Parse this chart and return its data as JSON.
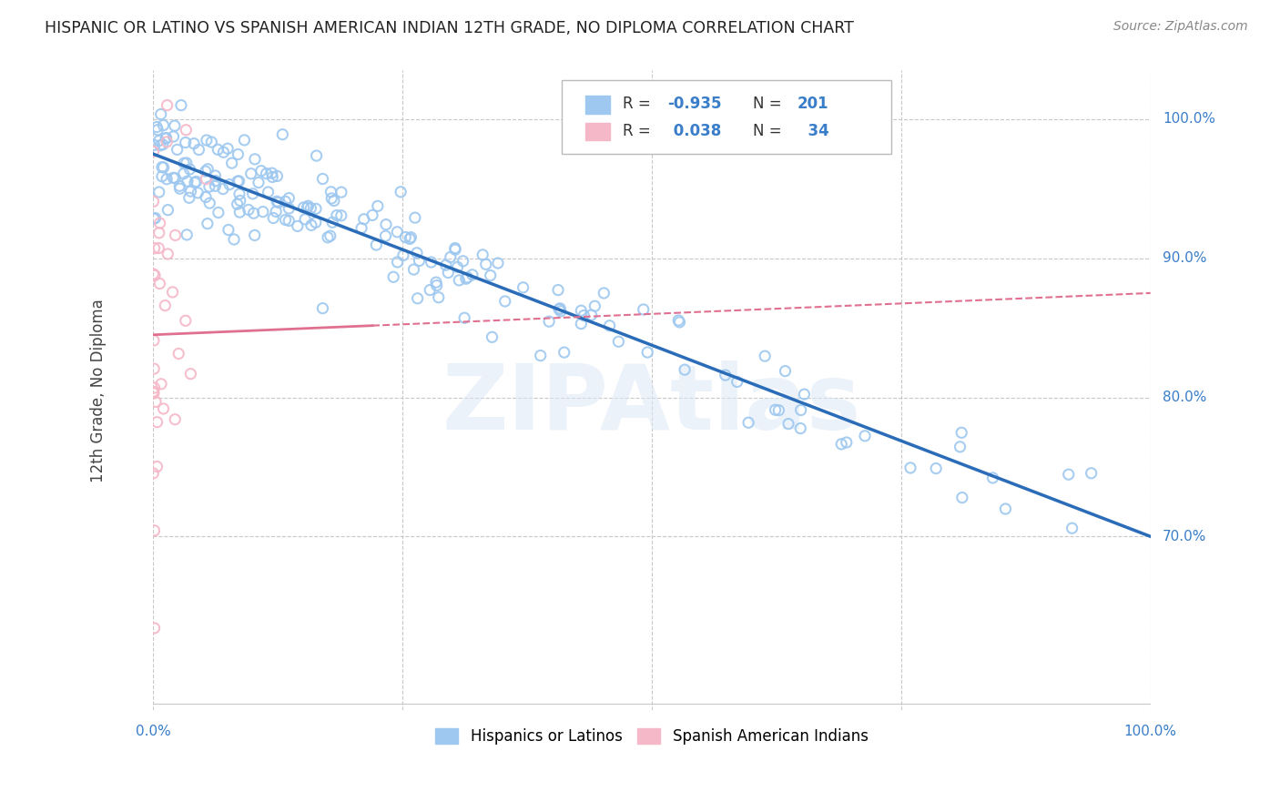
{
  "title": "HISPANIC OR LATINO VS SPANISH AMERICAN INDIAN 12TH GRADE, NO DIPLOMA CORRELATION CHART",
  "source": "Source: ZipAtlas.com",
  "ylabel": "12th Grade, No Diploma",
  "watermark": "ZIPAtlas",
  "blue_R": -0.935,
  "blue_N": 201,
  "pink_R": 0.038,
  "pink_N": 34,
  "blue_color": "#9ec8f0",
  "pink_color": "#f5b8c8",
  "blue_line_color": "#2b6cb8",
  "pink_line_color": "#e07090",
  "legend_label_blue": "Hispanics or Latinos",
  "legend_label_pink": "Spanish American Indians",
  "axis_label_color": "#3a7dc9",
  "background_color": "#ffffff",
  "grid_color": "#c8c8c8",
  "seed": 42,
  "blue_intercept": 0.975,
  "blue_slope": -0.275,
  "pink_intercept": 0.845,
  "pink_slope": 0.03,
  "y_min": 0.575,
  "y_max": 1.035,
  "x_min": 0.0,
  "x_max": 1.0
}
